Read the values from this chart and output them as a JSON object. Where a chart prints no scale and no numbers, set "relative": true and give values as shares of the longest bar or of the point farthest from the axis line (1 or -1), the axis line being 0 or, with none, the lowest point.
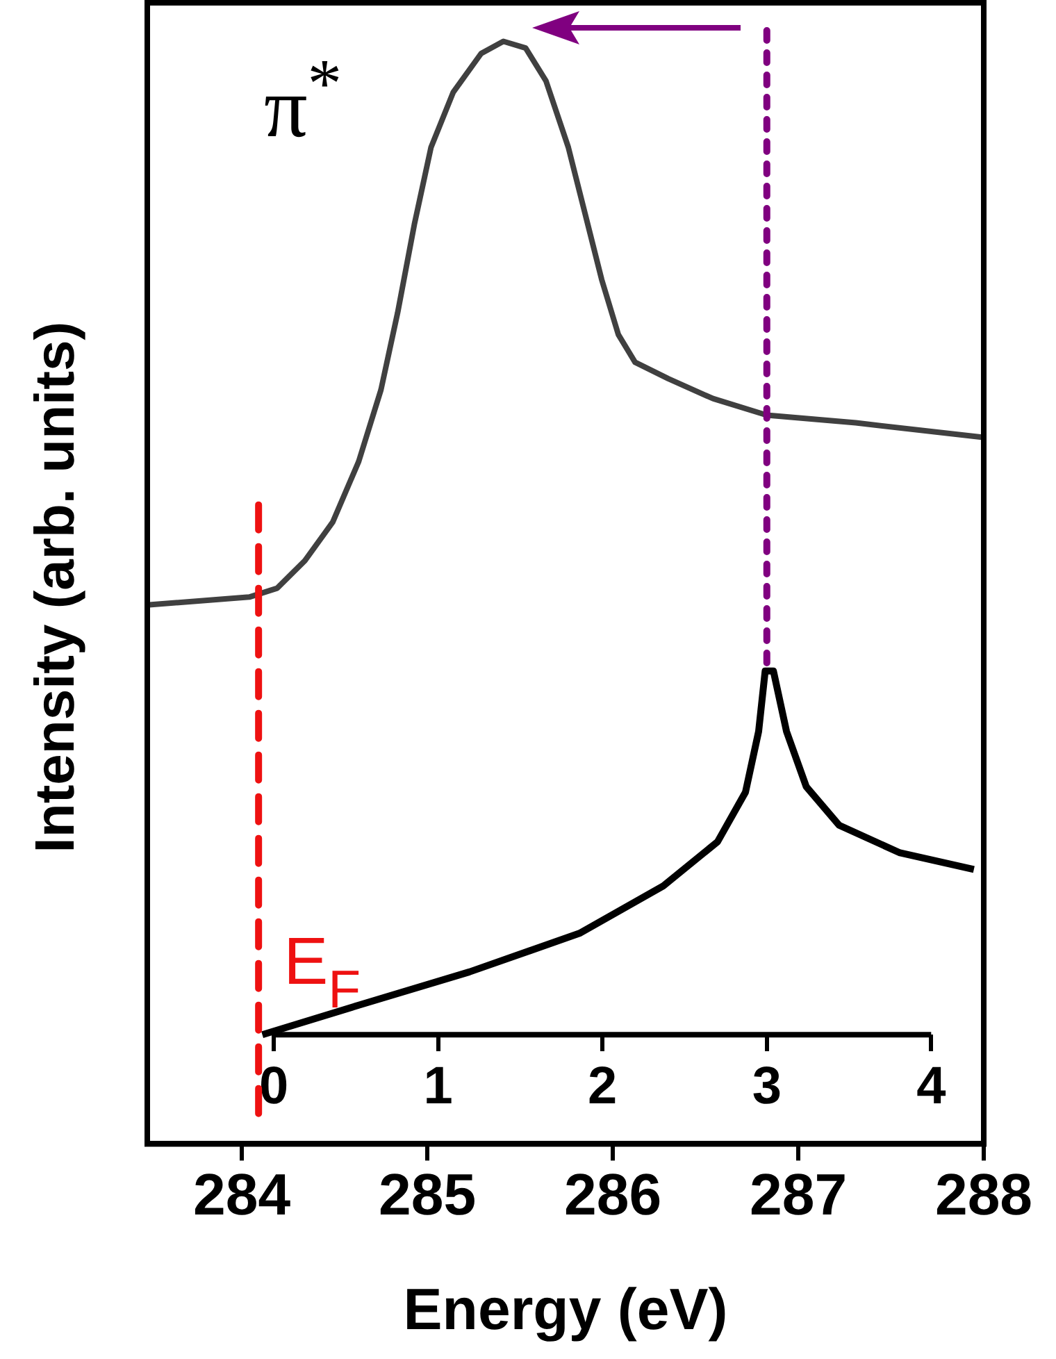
{
  "chart_data": {
    "type": "line",
    "xlabel": "Energy (eV)",
    "ylabel": "Intensity (arb. units)",
    "relative": true,
    "xlim": [
      283.49,
      288
    ],
    "xticks": [
      284,
      285,
      286,
      287,
      288
    ],
    "x2lim": [
      -0.77,
      4.32
    ],
    "x2ticks": [
      0,
      1,
      2,
      3,
      4
    ],
    "grid": false,
    "legend": false,
    "marker": "none",
    "line_style": "solid",
    "annotations": [
      "π$^{*}$"
    ],
    "ref_lines": [
      {
        "axis": "x",
        "value": 284.09,
        "label": "E$_{F}$",
        "color": "#ee1111",
        "line_style": "dashed"
      },
      {
        "axis": "x2",
        "value": 3,
        "color": "#800080",
        "line_style": "dotted"
      }
    ],
    "series": [
      {
        "color": "#404040",
        "x": [
          283.5,
          284.04,
          284.19,
          284.34,
          284.49,
          284.63,
          284.75,
          284.84,
          284.93,
          285.02,
          285.14,
          285.29,
          285.41,
          285.53,
          285.64,
          285.76,
          285.85,
          285.94,
          286.03,
          286.12,
          286.3,
          286.54,
          286.83,
          287.31,
          287.99
        ],
        "values": [
          0.489,
          0.496,
          0.504,
          0.529,
          0.564,
          0.619,
          0.684,
          0.754,
          0.834,
          0.904,
          0.954,
          0.989,
          1.0,
          0.994,
          0.964,
          0.904,
          0.844,
          0.784,
          0.734,
          0.709,
          0.694,
          0.676,
          0.661,
          0.654,
          0.641
        ]
      },
      {
        "color": "#000000",
        "axis": "x2",
        "x": [
          -0.07,
          0.52,
          1.19,
          1.86,
          2.37,
          2.7,
          2.87,
          2.95,
          2.99,
          3.04,
          3.12,
          3.24,
          3.44,
          3.81,
          4.26
        ],
        "values": [
          0.099,
          0.126,
          0.156,
          0.191,
          0.234,
          0.274,
          0.319,
          0.374,
          0.429,
          0.429,
          0.374,
          0.324,
          0.289,
          0.264,
          0.249
        ]
      }
    ]
  }
}
